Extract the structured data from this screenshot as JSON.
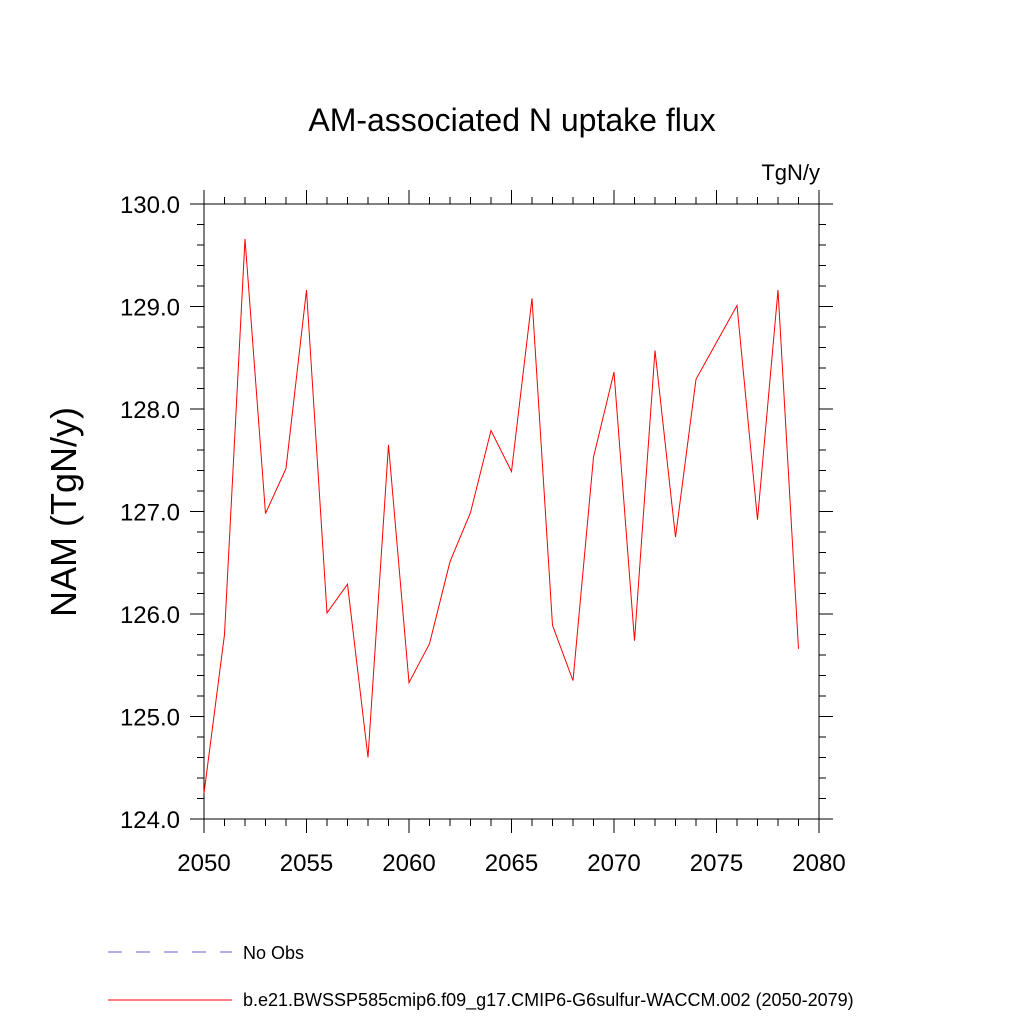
{
  "chart_data": {
    "type": "line",
    "title": "AM-associated N uptake flux",
    "units_label": "TgN/y",
    "ylabel": "NAM  (TgN/y)",
    "xlabel": "",
    "xlim": [
      2050,
      2080
    ],
    "ylim": [
      124.0,
      130.0
    ],
    "x_ticks": [
      "2050",
      "2055",
      "2060",
      "2065",
      "2070",
      "2075",
      "2080"
    ],
    "y_ticks": [
      "124.0",
      "125.0",
      "126.0",
      "127.0",
      "128.0",
      "129.0",
      "130.0"
    ],
    "grid": false,
    "legend_position": "bottom",
    "series": [
      {
        "name": "b.e21.BWSSP585cmip6.f09_g17.CMIP6-G6sulfur-WACCM.002 (2050-2079)",
        "color": "#ff0000",
        "style": "solid",
        "x": [
          2050,
          2051,
          2052,
          2053,
          2054,
          2055,
          2056,
          2057,
          2058,
          2059,
          2060,
          2061,
          2062,
          2063,
          2064,
          2065,
          2066,
          2067,
          2068,
          2069,
          2070,
          2071,
          2072,
          2073,
          2074,
          2075,
          2076,
          2077,
          2078,
          2079
        ],
        "values": [
          124.25,
          125.8,
          129.66,
          126.98,
          127.42,
          129.16,
          126.01,
          126.29,
          124.6,
          127.65,
          125.33,
          125.71,
          126.51,
          126.99,
          127.79,
          127.39,
          129.08,
          125.89,
          125.35,
          127.53,
          128.36,
          125.74,
          128.57,
          126.75,
          128.29,
          128.65,
          129.01,
          126.92,
          129.16,
          125.66
        ]
      }
    ],
    "legend": [
      {
        "label": "No Obs",
        "color": "#6a5acd",
        "style": "dashed"
      },
      {
        "label": "b.e21.BWSSP585cmip6.f09_g17.CMIP6-G6sulfur-WACCM.002 (2050-2079)",
        "color": "#ff0000",
        "style": "solid"
      }
    ]
  }
}
